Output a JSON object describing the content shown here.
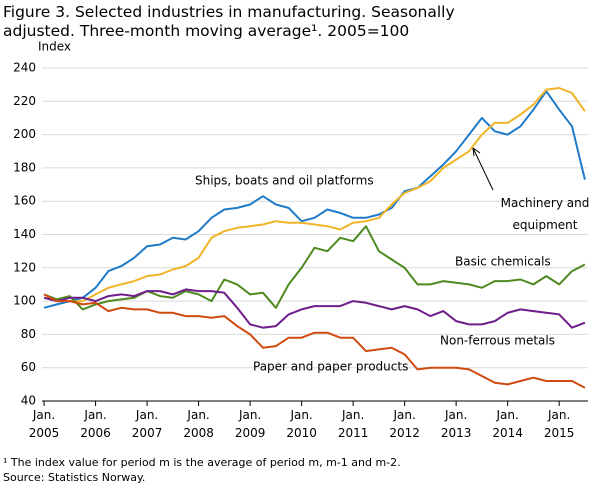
{
  "chart_data": {
    "type": "line",
    "title": "Figure 3. Selected industries in manufacturing. Seasonally adjusted. Three-month moving average¹. 2005=100",
    "y_label": "Index",
    "footnote": "¹ The index value for period m is the average of period m, m-1 and m-2.",
    "source": "Source: Statistics Norway.",
    "x": [
      2005,
      2005.25,
      2005.5,
      2005.75,
      2006,
      2006.25,
      2006.5,
      2006.75,
      2007,
      2007.25,
      2007.5,
      2007.75,
      2008,
      2008.25,
      2008.5,
      2008.75,
      2009,
      2009.25,
      2009.5,
      2009.75,
      2010,
      2010.25,
      2010.5,
      2010.75,
      2011,
      2011.25,
      2011.5,
      2011.75,
      2012,
      2012.25,
      2012.5,
      2012.75,
      2013,
      2013.25,
      2013.5,
      2013.75,
      2014,
      2014.25,
      2014.5,
      2014.75,
      2015,
      2015.25,
      2015.5
    ],
    "xlim": [
      2004.96,
      2015.56
    ],
    "xticks": [
      {
        "value": 2005,
        "label": "Jan. 2005"
      },
      {
        "value": 2006,
        "label": "Jan. 2006"
      },
      {
        "value": 2007,
        "label": "Jan. 2007"
      },
      {
        "value": 2008,
        "label": "Jan. 2008"
      },
      {
        "value": 2009,
        "label": "Jan. 2009"
      },
      {
        "value": 2010,
        "label": "Jan. 2010"
      },
      {
        "value": 2011,
        "label": "Jan. 2011"
      },
      {
        "value": 2012,
        "label": "Jan. 2012"
      },
      {
        "value": 2013,
        "label": "Jan. 2013"
      },
      {
        "value": 2014,
        "label": "Jan. 2014"
      },
      {
        "value": 2015,
        "label": "Jan. 2015"
      }
    ],
    "ylim": [
      40,
      240
    ],
    "yticks": [
      40,
      60,
      80,
      100,
      120,
      140,
      160,
      180,
      200,
      220,
      240
    ],
    "grid": true,
    "series": [
      {
        "name": "Ships, boats and oil platforms",
        "color": "#1f7bc8",
        "values": [
          96,
          98,
          100,
          102,
          108,
          118,
          121,
          126,
          133,
          134,
          138,
          137,
          142,
          150,
          155,
          156,
          158,
          163,
          158,
          156,
          148,
          150,
          155,
          153,
          150,
          150,
          152,
          156,
          166,
          168,
          175,
          182,
          190,
          200,
          210,
          202,
          200,
          205,
          215,
          226,
          215,
          205,
          173
        ]
      },
      {
        "name": "Machinery and equipment",
        "color": "#f0b429",
        "values": [
          102,
          101,
          100,
          100,
          104,
          108,
          110,
          112,
          115,
          116,
          119,
          121,
          126,
          138,
          142,
          144,
          145,
          146,
          148,
          147,
          147,
          146,
          145,
          143,
          147,
          148,
          150,
          158,
          165,
          168,
          172,
          180,
          185,
          190,
          200,
          207,
          207,
          212,
          218,
          227,
          228,
          225,
          214
        ]
      },
      {
        "name": "Basic chemicals",
        "color": "#4d8a1f",
        "values": [
          104,
          101,
          103,
          95,
          98,
          100,
          101,
          102,
          106,
          103,
          102,
          106,
          104,
          100,
          113,
          110,
          104,
          105,
          96,
          110,
          120,
          132,
          130,
          138,
          136,
          145,
          130,
          125,
          120,
          110,
          110,
          112,
          111,
          110,
          108,
          112,
          112,
          113,
          110,
          115,
          110,
          118,
          122
        ]
      },
      {
        "name": "Non-ferrous metals",
        "color": "#6f1e8c",
        "values": [
          102,
          100,
          102,
          102,
          100,
          103,
          104,
          103,
          106,
          106,
          104,
          107,
          106,
          106,
          105,
          96,
          86,
          84,
          85,
          92,
          95,
          97,
          97,
          97,
          100,
          99,
          97,
          95,
          97,
          95,
          91,
          94,
          88,
          86,
          86,
          88,
          93,
          95,
          94,
          93,
          92,
          84,
          87
        ]
      },
      {
        "name": "Paper and paper products",
        "color": "#d04a10",
        "values": [
          104,
          100,
          100,
          98,
          99,
          94,
          96,
          95,
          95,
          93,
          93,
          91,
          91,
          90,
          91,
          85,
          80,
          72,
          73,
          78,
          78,
          81,
          81,
          78,
          78,
          70,
          71,
          72,
          68,
          59,
          60,
          60,
          60,
          59,
          55,
          51,
          50,
          52,
          54,
          52,
          52,
          52,
          48
        ]
      }
    ]
  }
}
